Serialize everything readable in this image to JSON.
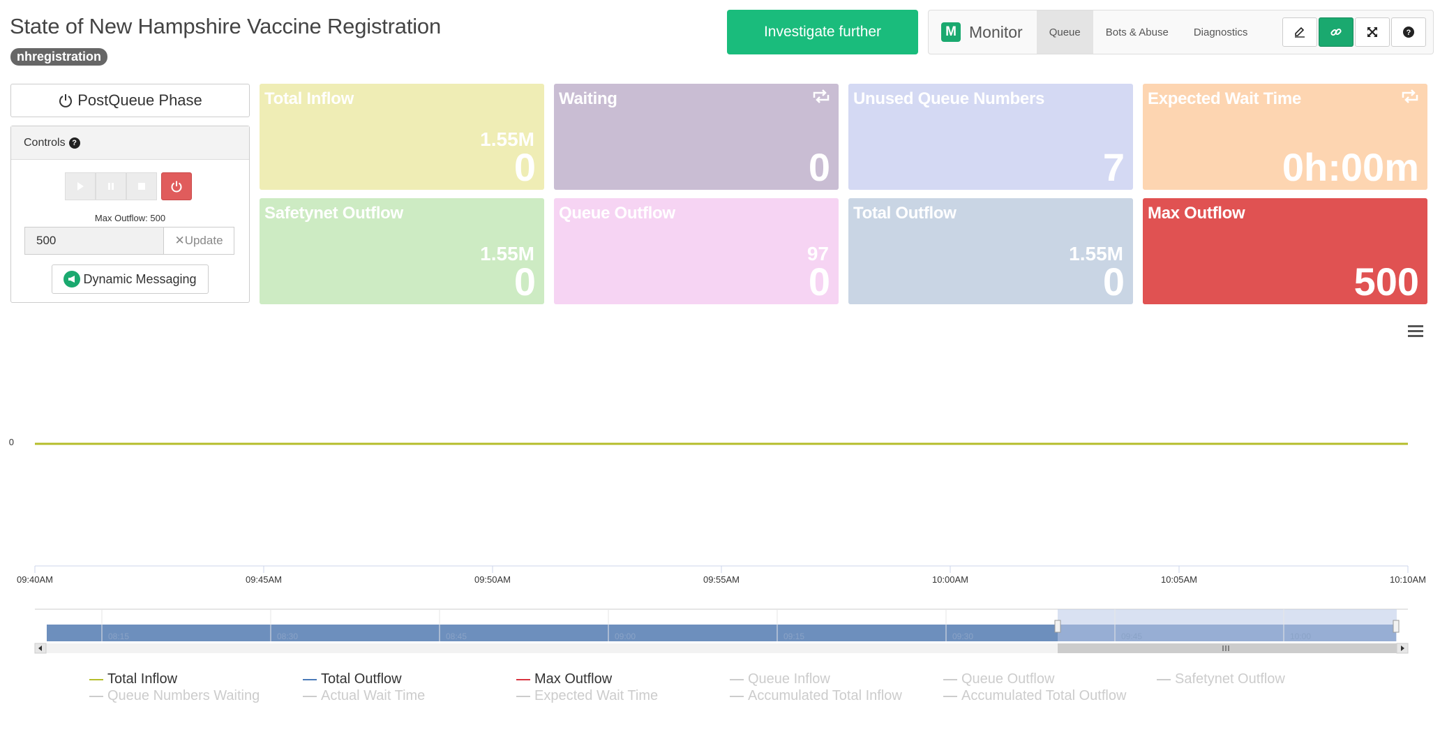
{
  "header": {
    "title": "State of New Hampshire Vaccine Registration",
    "badge": "nhregistration",
    "investigate_label": "Investigate further"
  },
  "monitor": {
    "logo_letter": "M",
    "label": "Monitor",
    "tabs": [
      "Queue",
      "Bots & Abuse",
      "Diagnostics"
    ],
    "active_tab": "Queue",
    "icons": [
      "edit-icon",
      "link-icon",
      "fullscreen-icon",
      "help-icon"
    ]
  },
  "left": {
    "phase_label": "PostQueue Phase",
    "controls_label": "Controls",
    "controls_help": "?",
    "max_outflow_label": "Max Outflow: 500",
    "outflow_value": "500",
    "update_label": "Update",
    "update_prefix": "✕",
    "dynamic_label": "Dynamic Messaging"
  },
  "cards": [
    {
      "title": "Total Inflow",
      "sub": "1.55M",
      "value": "0",
      "color": "#efedb5"
    },
    {
      "title": "Waiting",
      "sub": "",
      "value": "0",
      "color": "#c9bdd3"
    },
    {
      "title": "Unused Queue Numbers",
      "sub": "",
      "value": "7",
      "color": "#d4d9f3"
    },
    {
      "title": "Expected Wait Time",
      "sub": "",
      "value": "0h:00m",
      "color": "#fdd5b1"
    },
    {
      "title": "Safetynet Outflow",
      "sub": "1.55M",
      "value": "0",
      "color": "#cdebc3"
    },
    {
      "title": "Queue Outflow",
      "sub": "97",
      "value": "0",
      "color": "#f6d4f3"
    },
    {
      "title": "Total Outflow",
      "sub": "1.55M",
      "value": "0",
      "color": "#c9d5e4"
    },
    {
      "title": "Max Outflow",
      "sub": "",
      "value": "500",
      "color": "#e05252"
    }
  ],
  "chart_data": {
    "type": "line",
    "y_tick_labels": [
      "0"
    ],
    "x_tick_labels": [
      "09:40AM",
      "09:45AM",
      "09:50AM",
      "09:55AM",
      "10:00AM",
      "10:05AM",
      "10:10AM"
    ],
    "navigator_labels": [
      "08:15",
      "08:30",
      "08:45",
      "09:00",
      "09:15",
      "09:30",
      "09:45",
      "10:00"
    ],
    "series": [
      {
        "name": "Total Inflow",
        "color": "#b5bd2a",
        "values": [
          0,
          0
        ]
      }
    ],
    "legend": [
      {
        "name": "Total Inflow",
        "color": "#b5bd2a",
        "active": true
      },
      {
        "name": "Total Outflow",
        "color": "#4a7ab8",
        "active": true
      },
      {
        "name": "Max Outflow",
        "color": "#d9333f",
        "active": true
      },
      {
        "name": "Queue Inflow",
        "color": "#cccccc",
        "active": false
      },
      {
        "name": "Queue Outflow",
        "color": "#cccccc",
        "active": false
      },
      {
        "name": "Safetynet Outflow",
        "color": "#cccccc",
        "active": false
      },
      {
        "name": "Queue Numbers Waiting",
        "color": "#cccccc",
        "active": false
      },
      {
        "name": "Actual Wait Time",
        "color": "#cccccc",
        "active": false
      },
      {
        "name": "Expected Wait Time",
        "color": "#cccccc",
        "active": false
      },
      {
        "name": "Accumulated Total Inflow",
        "color": "#cccccc",
        "active": false
      },
      {
        "name": "Accumulated Total Outflow",
        "color": "#cccccc",
        "active": false
      }
    ]
  }
}
